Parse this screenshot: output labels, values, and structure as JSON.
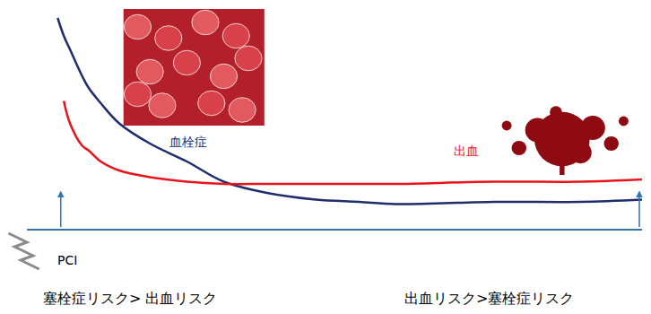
{
  "chart_data": {
    "type": "line",
    "x": [
      5,
      6,
      7,
      9,
      10,
      12,
      15,
      20,
      26,
      32,
      39,
      47,
      54,
      60,
      76,
      90,
      100
    ],
    "series": [
      {
        "name": "血栓症",
        "color": "#1f2d6b",
        "line_style": "solid",
        "values": [
          94,
          86,
          80,
          68,
          63,
          56,
          47,
          38,
          30,
          21,
          16,
          13,
          12,
          11,
          12,
          12,
          13
        ]
      },
      {
        "name": "出血",
        "color": "#e8141b",
        "line_style": "solid",
        "values": [
          null,
          57,
          47,
          37,
          35,
          30,
          26,
          23,
          21,
          20,
          20,
          20,
          20,
          20,
          21,
          21,
          22
        ]
      }
    ],
    "xlim": [
      0,
      100
    ],
    "ylim": [
      0,
      100
    ],
    "grid": false,
    "tick_labels": false,
    "x_label": "PCI",
    "annotations": [
      "塞栓症リスク> 出血リスク",
      "出血リスク>塞栓症リスク"
    ]
  }
}
